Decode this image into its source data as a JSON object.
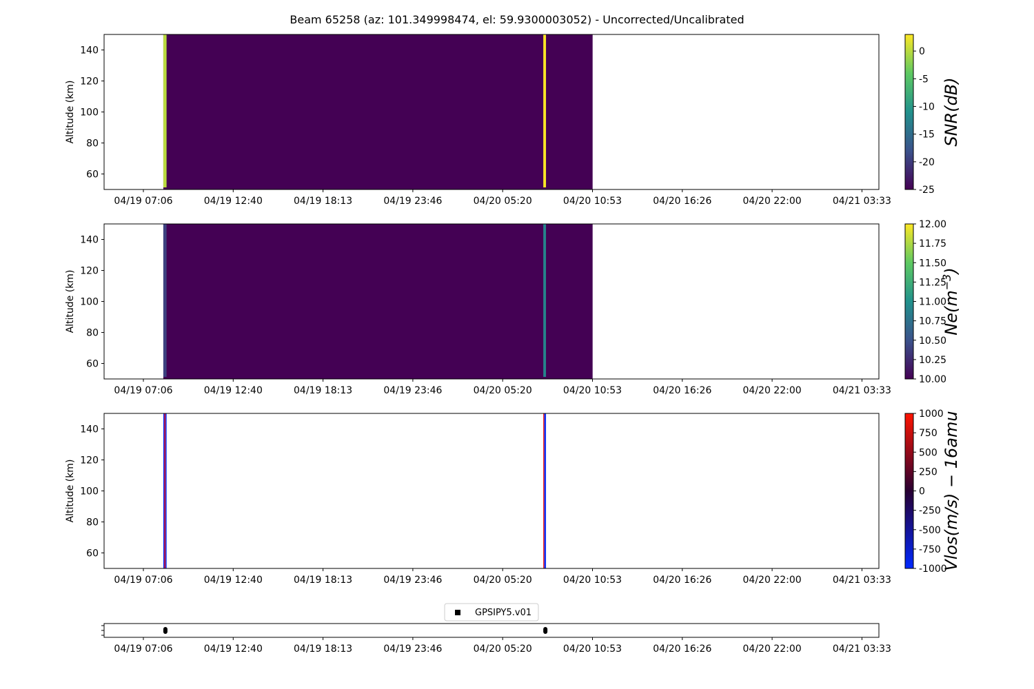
{
  "title": "Beam 65258 (az: 101.349998474, el: 59.9300003052) - Uncorrected/Uncalibrated",
  "chart_data": [
    {
      "type": "heatmap",
      "panel": "snr",
      "ylabel": "Altitude (km)",
      "ylim": [
        50,
        150
      ],
      "yticks": [
        60,
        80,
        100,
        120,
        140
      ],
      "x_tick_labels": [
        "04/19 07:06",
        "04/19 12:40",
        "04/19 18:13",
        "04/19 23:46",
        "04/20 05:20",
        "04/20 10:53",
        "04/20 16:26",
        "04/20 22:00",
        "04/21 03:33"
      ],
      "data_coverage": [
        "04/19 08:20",
        "04/20 10:53"
      ],
      "colormap": "viridis",
      "colorbar_label": "SNR(dB)",
      "colorbar_range": [
        -25,
        3
      ],
      "colorbar_ticks": [
        0,
        -5,
        -10,
        -15,
        -20,
        -25
      ],
      "background_value": -25,
      "bursts": [
        {
          "start": "04/19 08:20",
          "end": "04/19 08:32",
          "value": 0
        },
        {
          "start": "04/20 07:50",
          "end": "04/20 08:00",
          "value": 3
        }
      ]
    },
    {
      "type": "heatmap",
      "panel": "ne",
      "ylabel": "Altitude (km)",
      "ylim": [
        50,
        150
      ],
      "yticks": [
        60,
        80,
        100,
        120,
        140
      ],
      "x_tick_labels": [
        "04/19 07:06",
        "04/19 12:40",
        "04/19 18:13",
        "04/19 23:46",
        "04/20 05:20",
        "04/20 10:53",
        "04/20 16:26",
        "04/20 22:00",
        "04/21 03:33"
      ],
      "data_coverage": [
        "04/19 08:20",
        "04/20 10:53"
      ],
      "colormap": "viridis",
      "colorbar_label": "Ne(m^-3)",
      "colorbar_range": [
        10.0,
        12.0
      ],
      "colorbar_ticks": [
        "12.00",
        "11.75",
        "11.50",
        "11.25",
        "11.00",
        "10.75",
        "10.50",
        "10.25",
        "10.00"
      ],
      "background_value": 10.0,
      "bursts": [
        {
          "start": "04/19 08:20",
          "end": "04/19 08:32",
          "value": 10.4
        },
        {
          "start": "04/20 07:50",
          "end": "04/20 08:00",
          "value": 10.9
        }
      ]
    },
    {
      "type": "heatmap",
      "panel": "vlos",
      "ylabel": "Altitude (km)",
      "ylim": [
        50,
        150
      ],
      "yticks": [
        60,
        80,
        100,
        120,
        140
      ],
      "x_tick_labels": [
        "04/19 07:06",
        "04/19 12:40",
        "04/19 18:13",
        "04/19 23:46",
        "04/20 05:20",
        "04/20 10:53",
        "04/20 16:26",
        "04/20 22:00",
        "04/21 03:33"
      ],
      "colormap": "blue-black-red",
      "colorbar_label": "Vlos(m/s) − 16amu",
      "colorbar_range": [
        -1000,
        1000
      ],
      "colorbar_ticks": [
        1000,
        750,
        500,
        250,
        0,
        -250,
        -500,
        -750,
        -1000
      ],
      "bursts": [
        {
          "start": "04/19 08:20",
          "end": "04/19 08:32",
          "values": [
            -1000,
            1000,
            -1000
          ]
        },
        {
          "start": "04/20 07:50",
          "end": "04/20 08:00",
          "values": [
            1000,
            -1000,
            -1000
          ]
        }
      ]
    },
    {
      "type": "scatter",
      "panel": "instrument",
      "x_tick_labels": [
        "04/19 07:06",
        "04/19 12:40",
        "04/19 18:13",
        "04/19 23:46",
        "04/20 05:20",
        "04/20 10:53",
        "04/20 16:26",
        "04/20 22:00",
        "04/21 03:33"
      ],
      "legend": "GPSIPY5.v01",
      "legend_placement": "top-center",
      "series": [
        {
          "name": "GPSIPY5.v01",
          "marker": "square",
          "color": "#000000",
          "segments": [
            [
              "04/19 08:20",
              "04/19 08:35"
            ],
            [
              "04/20 07:50",
              "04/20 08:02"
            ]
          ]
        }
      ]
    }
  ]
}
